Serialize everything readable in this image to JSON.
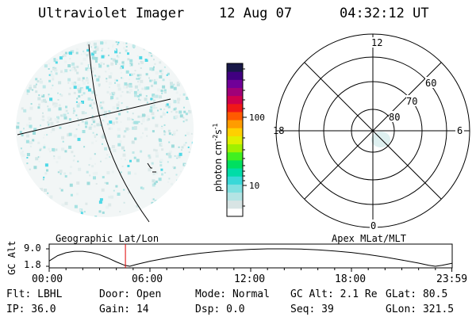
{
  "header": {
    "title": "Ultraviolet Imager",
    "date": "12 Aug 07",
    "time": "04:32:12 UT"
  },
  "colorbar": {
    "unit_label_main": "photon cm",
    "unit_exp1": "-2",
    "unit_mid": "s",
    "unit_exp2": "-1",
    "tick_100": "100",
    "tick_10": "10",
    "colors": [
      "#ffffff",
      "#d8e4e4",
      "#b4e4e4",
      "#7fe0e0",
      "#38d8d8",
      "#00dca8",
      "#00e060",
      "#40f020",
      "#a0f000",
      "#e0f000",
      "#ffd000",
      "#ff9c00",
      "#ff5a00",
      "#f01818",
      "#d0004c",
      "#a00078",
      "#700098",
      "#400080",
      "#181848"
    ]
  },
  "polar": {
    "mlt_labels": {
      "top": "12",
      "left": "18",
      "right": "6",
      "bottom": "0"
    },
    "lat_labels": [
      "60",
      "70",
      "80"
    ]
  },
  "timeline": {
    "left_label": "Geographic Lat/Lon",
    "right_label": "Apex MLat/MLT",
    "y_axis_label": "GC Alt",
    "y_top": "9.0",
    "y_bottom": "1.8",
    "x_ticks": [
      "00:00",
      "06:00",
      "12:00",
      "18:00",
      "23:59"
    ],
    "marker_hour": 4.54,
    "curve": [
      {
        "h": 0.0,
        "alt": 4.0
      },
      {
        "h": 0.5,
        "alt": 6.2
      },
      {
        "h": 1.0,
        "alt": 7.4
      },
      {
        "h": 1.5,
        "alt": 8.0
      },
      {
        "h": 2.0,
        "alt": 8.0
      },
      {
        "h": 2.5,
        "alt": 7.5
      },
      {
        "h": 3.0,
        "alt": 6.6
      },
      {
        "h": 3.5,
        "alt": 5.2
      },
      {
        "h": 4.0,
        "alt": 3.6
      },
      {
        "h": 4.5,
        "alt": 2.2
      },
      {
        "h": 4.8,
        "alt": 1.8
      },
      {
        "h": 5.2,
        "alt": 2.6
      },
      {
        "h": 6.0,
        "alt": 3.9
      },
      {
        "h": 7.0,
        "alt": 5.2
      },
      {
        "h": 8.0,
        "alt": 6.3
      },
      {
        "h": 9.0,
        "alt": 7.2
      },
      {
        "h": 10.0,
        "alt": 7.9
      },
      {
        "h": 11.0,
        "alt": 8.4
      },
      {
        "h": 12.0,
        "alt": 8.8
      },
      {
        "h": 13.0,
        "alt": 9.0
      },
      {
        "h": 14.0,
        "alt": 9.0
      },
      {
        "h": 15.0,
        "alt": 8.9
      },
      {
        "h": 16.0,
        "alt": 8.6
      },
      {
        "h": 17.0,
        "alt": 8.1
      },
      {
        "h": 18.0,
        "alt": 7.5
      },
      {
        "h": 19.0,
        "alt": 6.6
      },
      {
        "h": 20.0,
        "alt": 5.6
      },
      {
        "h": 21.0,
        "alt": 4.4
      },
      {
        "h": 22.0,
        "alt": 3.1
      },
      {
        "h": 22.6,
        "alt": 2.2
      },
      {
        "h": 23.0,
        "alt": 1.8
      },
      {
        "h": 23.4,
        "alt": 2.2
      },
      {
        "h": 23.98,
        "alt": 3.0
      }
    ]
  },
  "status": {
    "row1": [
      {
        "key": "flt",
        "text": "Flt: LBHL"
      },
      {
        "key": "door",
        "text": "Door: Open"
      },
      {
        "key": "mode",
        "text": "Mode: Normal"
      },
      {
        "key": "gcalt",
        "text": "GC Alt: 2.1 Re"
      },
      {
        "key": "glat",
        "text": "GLat:  80.5"
      }
    ],
    "row2": [
      {
        "key": "ip",
        "text": "IP: 36.0"
      },
      {
        "key": "gain",
        "text": "Gain: 14"
      },
      {
        "key": "dsp",
        "text": "Dsp:    0.0"
      },
      {
        "key": "seq",
        "text": "Seq: 39"
      },
      {
        "key": "glon",
        "text": "GLon: 321.5"
      }
    ]
  }
}
